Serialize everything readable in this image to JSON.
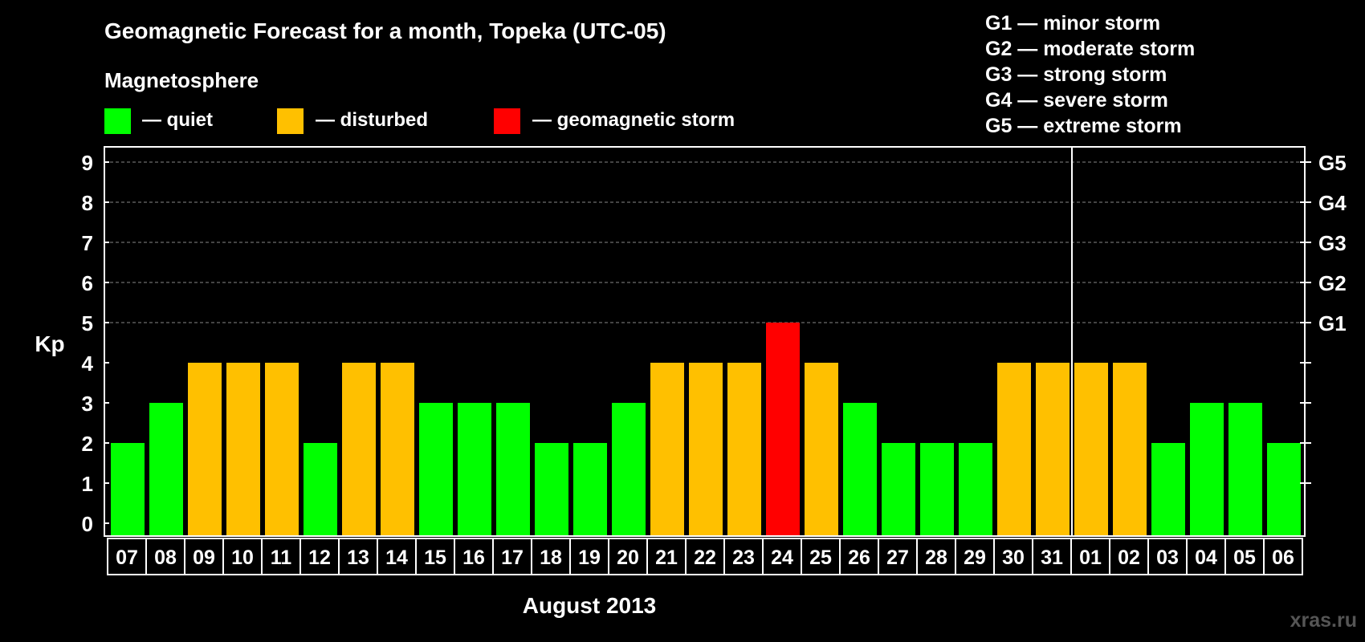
{
  "chart_data": {
    "type": "bar",
    "title": "Geomagnetic Forecast for a month, Topeka (UTC-05)",
    "legend_title": "Magnetosphere",
    "legend": [
      {
        "key": "quiet",
        "label": "— quiet",
        "color": "#00ff00"
      },
      {
        "key": "disturbed",
        "label": "— disturbed",
        "color": "#ffc000"
      },
      {
        "key": "storm",
        "label": "— geomagnetic storm",
        "color": "#ff0000"
      }
    ],
    "storm_levels": [
      "G1 — minor storm",
      "G2 — moderate storm",
      "G3 — strong storm",
      "G4 — severe storm",
      "G5 — extreme storm"
    ],
    "ylabel": "Kp",
    "xlabel": "August 2013",
    "ylim": [
      0,
      9
    ],
    "yticks": [
      0,
      1,
      2,
      3,
      4,
      5,
      6,
      7,
      8,
      9
    ],
    "right_axis": [
      {
        "kp": 5,
        "label": "G1"
      },
      {
        "kp": 6,
        "label": "G2"
      },
      {
        "kp": 7,
        "label": "G3"
      },
      {
        "kp": 8,
        "label": "G4"
      },
      {
        "kp": 9,
        "label": "G5"
      }
    ],
    "categories": [
      "07",
      "08",
      "09",
      "10",
      "11",
      "12",
      "13",
      "14",
      "15",
      "16",
      "17",
      "18",
      "19",
      "20",
      "21",
      "22",
      "23",
      "24",
      "25",
      "26",
      "27",
      "28",
      "29",
      "30",
      "31",
      "01",
      "02",
      "03",
      "04",
      "05",
      "06"
    ],
    "values": [
      2,
      3,
      4,
      4,
      4,
      2,
      4,
      4,
      3,
      3,
      3,
      2,
      2,
      3,
      4,
      4,
      4,
      5,
      4,
      3,
      2,
      2,
      2,
      4,
      4,
      4,
      4,
      2,
      3,
      3,
      2
    ],
    "month_divider_after": "31",
    "watermark": "xras.ru"
  }
}
